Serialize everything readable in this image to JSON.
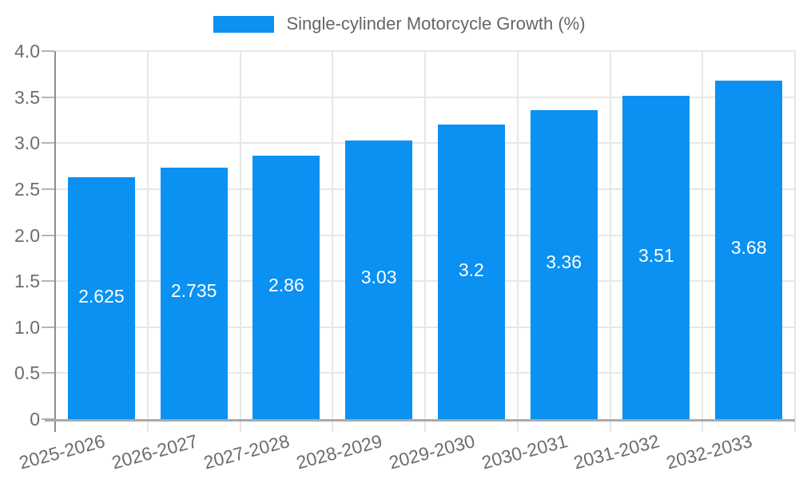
{
  "legend": {
    "label": "Single-cylinder Motorcycle Growth (%)"
  },
  "chart_data": {
    "type": "bar",
    "title": "",
    "legend_label": "Single-cylinder Motorcycle Growth (%)",
    "legend_position": "top-center",
    "categories": [
      "2025-2026",
      "2026-2027",
      "2027-2028",
      "2028-2029",
      "2029-2030",
      "2030-2031",
      "2031-2032",
      "2032-2033"
    ],
    "values": [
      2.625,
      2.735,
      2.86,
      3.03,
      3.2,
      3.36,
      3.51,
      3.68
    ],
    "value_labels": [
      "2.625",
      "2.735",
      "2.86",
      "3.03",
      "3.2",
      "3.36",
      "3.51",
      "3.68"
    ],
    "xlabel": "",
    "ylabel": "",
    "ylim": [
      0,
      4
    ],
    "ytick_step": 0.5,
    "ytick_labels": [
      "0",
      "0.5",
      "1.0",
      "1.5",
      "2.0",
      "2.5",
      "3.0",
      "3.5",
      "4.0"
    ],
    "grid": true,
    "colors": {
      "bar": "#0a91f2",
      "value_label": "#ffffff",
      "grid": "#e7e7e7",
      "x_axis_line": "#a9a9a9",
      "y_axis_line": "#8f8f8f",
      "tick_mark": "#b5b5b5",
      "tick_text": "#6d6d6d",
      "legend_text": "#666666",
      "background": "#ffffff"
    }
  }
}
